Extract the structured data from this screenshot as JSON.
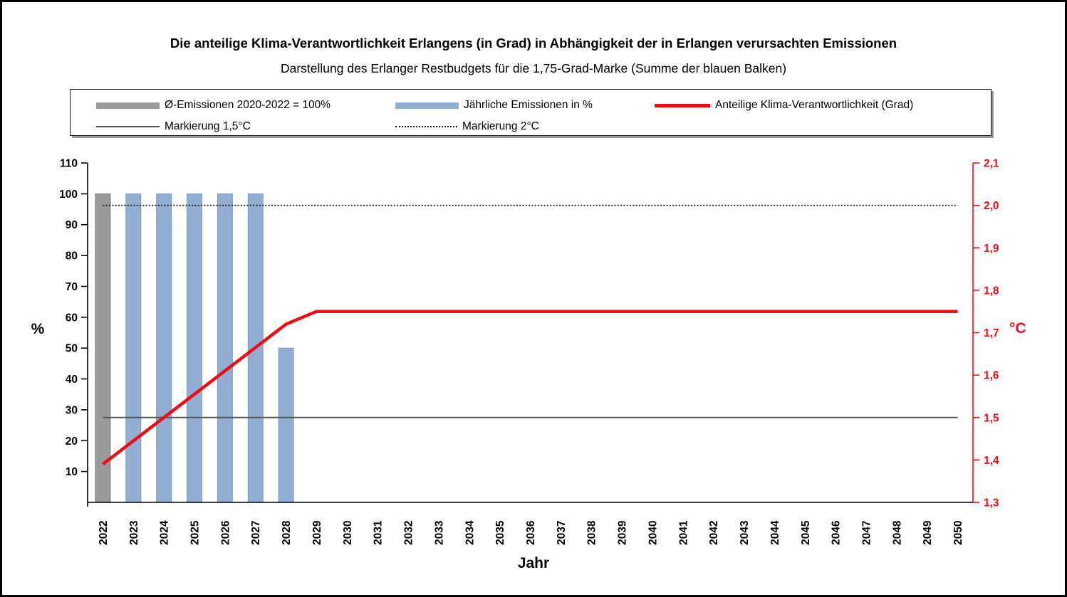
{
  "title": "Die anteilige Klima-Verantwortlichkeit Erlangens (in Grad) in Abhängigkeit der in Erlangen verursachten Emissionen",
  "subtitle": "Darstellung des Erlanger Restbudgets für die 1,75-Grad-Marke (Summe der blauen Balken)",
  "axes": {
    "x_title": "Jahr",
    "left_title": "%",
    "right_title": "°C"
  },
  "chart_data": {
    "type": "bar",
    "title": "Die anteilige Klima-Verantwortlichkeit Erlangens (in Grad) in Abhängigkeit der in Erlangen verursachten Emissionen",
    "subtitle": "Darstellung des Erlanger Restbudgets für die 1,75-Grad-Marke (Summe der blauen Balken)",
    "xlabel": "Jahr",
    "ylabel_left": "%",
    "ylabel_right": "°C",
    "legend_position": "top",
    "grid": false,
    "categories": [
      "2022",
      "2023",
      "2024",
      "2025",
      "2026",
      "2027",
      "2028",
      "2029",
      "2030",
      "2031",
      "2032",
      "2033",
      "2034",
      "2035",
      "2036",
      "2037",
      "2038",
      "2039",
      "2040",
      "2041",
      "2042",
      "2043",
      "2044",
      "2045",
      "2046",
      "2047",
      "2048",
      "2049",
      "2050"
    ],
    "left_axis": {
      "min": 0,
      "max": 110,
      "ticks": [
        10,
        20,
        30,
        40,
        50,
        60,
        70,
        80,
        90,
        100,
        110
      ],
      "color": "#000000"
    },
    "right_axis": {
      "min": 1.3,
      "max": 2.1,
      "tick_values": [
        1.3,
        1.4,
        1.5,
        1.6,
        1.7,
        1.8,
        1.9,
        2.0,
        2.1
      ],
      "tick_labels": [
        "1,3",
        "1,4",
        "1,5",
        "1,6",
        "1,7",
        "1,8",
        "1,9",
        "2,0",
        "2,1"
      ],
      "color": "#ee0d16"
    },
    "series": [
      {
        "name": "Ø-Emissionen 2020-2022 = 100%",
        "type": "bar",
        "axis": "left",
        "color": "#9a9a9a",
        "border": "#808080",
        "values": [
          100,
          null,
          null,
          null,
          null,
          null,
          null,
          null,
          null,
          null,
          null,
          null,
          null,
          null,
          null,
          null,
          null,
          null,
          null,
          null,
          null,
          null,
          null,
          null,
          null,
          null,
          null,
          null,
          null
        ]
      },
      {
        "name": "Jährliche Emissionen in %",
        "type": "bar",
        "axis": "left",
        "color": "#92aed2",
        "border": "#7b9cc4",
        "values": [
          null,
          100,
          100,
          100,
          100,
          100,
          50,
          null,
          null,
          null,
          null,
          null,
          null,
          null,
          null,
          null,
          null,
          null,
          null,
          null,
          null,
          null,
          null,
          null,
          null,
          null,
          null,
          null,
          null
        ]
      },
      {
        "name": "Anteilige Klima-Verantwortlichkeit (Grad)",
        "type": "line",
        "axis": "right",
        "color": "#ee0d16",
        "width": 4.5,
        "values": [
          1.39,
          1.445,
          1.5,
          1.555,
          1.61,
          1.665,
          1.72,
          1.75,
          1.75,
          1.75,
          1.75,
          1.75,
          1.75,
          1.75,
          1.75,
          1.75,
          1.75,
          1.75,
          1.75,
          1.75,
          1.75,
          1.75,
          1.75,
          1.75,
          1.75,
          1.75,
          1.75,
          1.75,
          1.75
        ]
      },
      {
        "name": "Markierung 1,5°C",
        "type": "hline",
        "axis": "right",
        "value": 1.5,
        "style": "solid",
        "color": "#555555",
        "width": 2
      },
      {
        "name": "Markierung 2°C",
        "type": "hline",
        "axis": "right",
        "value": 2.0,
        "style": "dotted",
        "color": "#1a1a1a",
        "width": 1.8
      }
    ]
  }
}
